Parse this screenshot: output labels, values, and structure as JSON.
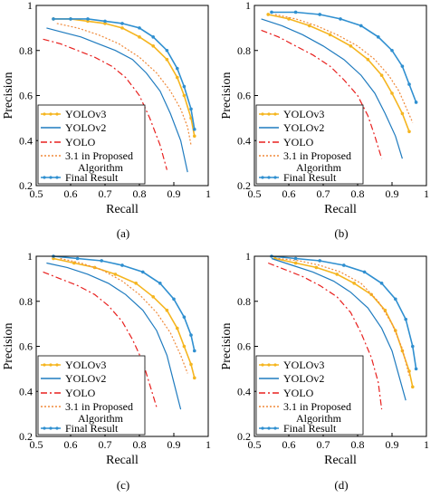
{
  "figure": {
    "subfigure_labels": [
      "(a)",
      "(b)",
      "(c)",
      "(d)"
    ]
  },
  "chart_data": [
    {
      "type": "line",
      "label": "(a)",
      "xlabel": "Recall",
      "ylabel": "Precision",
      "xlim": [
        0.5,
        1
      ],
      "ylim": [
        0.2,
        1
      ],
      "xticks": [
        "0.5",
        "0.6",
        "0.7",
        "0.8",
        "0.9",
        "1"
      ],
      "yticks": [
        "0.2",
        "0.4",
        "0.6",
        "0.8",
        "1"
      ],
      "legend": [
        "YOLOv3",
        "YOLOv2",
        "YOLO",
        "3.1 in Proposed Algorithm",
        "Final Result"
      ],
      "series": [
        {
          "name": "YOLOv3",
          "color": "#f5b51f",
          "style": "solid-marker",
          "x": [
            0.55,
            0.6,
            0.65,
            0.7,
            0.75,
            0.8,
            0.84,
            0.88,
            0.91,
            0.93,
            0.95,
            0.96
          ],
          "y": [
            0.94,
            0.94,
            0.93,
            0.92,
            0.9,
            0.86,
            0.82,
            0.76,
            0.68,
            0.6,
            0.5,
            0.42
          ]
        },
        {
          "name": "YOLOv2",
          "color": "#1f7bbf",
          "style": "solid",
          "x": [
            0.53,
            0.58,
            0.63,
            0.68,
            0.73,
            0.78,
            0.82,
            0.86,
            0.89,
            0.92,
            0.94
          ],
          "y": [
            0.9,
            0.88,
            0.86,
            0.83,
            0.8,
            0.76,
            0.7,
            0.62,
            0.52,
            0.4,
            0.26
          ]
        },
        {
          "name": "YOLO",
          "color": "#e8201e",
          "style": "dashdot",
          "x": [
            0.52,
            0.57,
            0.62,
            0.67,
            0.72,
            0.76,
            0.8,
            0.83,
            0.86,
            0.88
          ],
          "y": [
            0.85,
            0.83,
            0.8,
            0.77,
            0.73,
            0.68,
            0.6,
            0.5,
            0.38,
            0.27
          ]
        },
        {
          "name": "3.1 in Proposed Algorithm",
          "color": "#f08a3a",
          "style": "dotted",
          "x": [
            0.56,
            0.62,
            0.68,
            0.74,
            0.8,
            0.85,
            0.89,
            0.92,
            0.94,
            0.95
          ],
          "y": [
            0.92,
            0.9,
            0.87,
            0.83,
            0.77,
            0.7,
            0.62,
            0.54,
            0.46,
            0.38
          ]
        },
        {
          "name": "Final Result",
          "color": "#2f8fd0",
          "style": "solid-marker",
          "x": [
            0.55,
            0.6,
            0.65,
            0.7,
            0.75,
            0.8,
            0.84,
            0.88,
            0.91,
            0.93,
            0.95,
            0.96
          ],
          "y": [
            0.94,
            0.94,
            0.94,
            0.93,
            0.92,
            0.9,
            0.86,
            0.8,
            0.72,
            0.64,
            0.54,
            0.45
          ]
        }
      ]
    },
    {
      "type": "line",
      "label": "(b)",
      "xlabel": "Recall",
      "ylabel": "Precision",
      "xlim": [
        0.5,
        1
      ],
      "ylim": [
        0.2,
        1
      ],
      "xticks": [
        "0.5",
        "0.6",
        "0.7",
        "0.8",
        "0.9",
        "1"
      ],
      "yticks": [
        "0.2",
        "0.4",
        "0.6",
        "0.8",
        "1"
      ],
      "legend": [
        "YOLOv3",
        "YOLOv2",
        "YOLO",
        "3.1 in Proposed Algorithm",
        "Final Result"
      ],
      "series": [
        {
          "name": "YOLOv3",
          "color": "#f5b51f",
          "style": "solid-marker",
          "x": [
            0.54,
            0.6,
            0.66,
            0.72,
            0.78,
            0.83,
            0.87,
            0.9,
            0.93,
            0.95
          ],
          "y": [
            0.96,
            0.94,
            0.91,
            0.87,
            0.82,
            0.76,
            0.69,
            0.61,
            0.52,
            0.44
          ]
        },
        {
          "name": "YOLOv2",
          "color": "#1f7bbf",
          "style": "solid",
          "x": [
            0.52,
            0.58,
            0.64,
            0.7,
            0.76,
            0.81,
            0.85,
            0.88,
            0.91,
            0.93
          ],
          "y": [
            0.94,
            0.91,
            0.87,
            0.82,
            0.76,
            0.69,
            0.61,
            0.52,
            0.42,
            0.32
          ]
        },
        {
          "name": "YOLO",
          "color": "#e8201e",
          "style": "dashdot",
          "x": [
            0.52,
            0.57,
            0.62,
            0.67,
            0.72,
            0.76,
            0.8,
            0.83,
            0.85,
            0.87
          ],
          "y": [
            0.89,
            0.86,
            0.82,
            0.78,
            0.73,
            0.67,
            0.6,
            0.51,
            0.42,
            0.32
          ]
        },
        {
          "name": "3.1 in Proposed Algorithm",
          "color": "#f08a3a",
          "style": "dotted",
          "x": [
            0.56,
            0.62,
            0.68,
            0.74,
            0.8,
            0.85,
            0.89,
            0.92,
            0.94,
            0.96
          ],
          "y": [
            0.96,
            0.94,
            0.91,
            0.87,
            0.82,
            0.76,
            0.69,
            0.62,
            0.55,
            0.48
          ]
        },
        {
          "name": "Final Result",
          "color": "#2f8fd0",
          "style": "solid-marker",
          "x": [
            0.55,
            0.62,
            0.69,
            0.75,
            0.81,
            0.86,
            0.9,
            0.93,
            0.95,
            0.97
          ],
          "y": [
            0.97,
            0.97,
            0.96,
            0.94,
            0.91,
            0.86,
            0.8,
            0.73,
            0.65,
            0.57
          ]
        }
      ]
    },
    {
      "type": "line",
      "label": "(c)",
      "xlabel": "Recall",
      "ylabel": "Precision",
      "xlim": [
        0.5,
        1
      ],
      "ylim": [
        0.2,
        1
      ],
      "xticks": [
        "0.5",
        "0.6",
        "0.7",
        "0.8",
        "0.9",
        "1"
      ],
      "yticks": [
        "0.2",
        "0.4",
        "0.6",
        "0.8",
        "1"
      ],
      "legend": [
        "YOLOv3",
        "YOLOv2",
        "YOLO",
        "3.1 in Proposed Algorithm",
        "Final Result"
      ],
      "series": [
        {
          "name": "YOLOv3",
          "color": "#f5b51f",
          "style": "solid-marker",
          "x": [
            0.55,
            0.61,
            0.67,
            0.73,
            0.79,
            0.84,
            0.88,
            0.91,
            0.93,
            0.95,
            0.96
          ],
          "y": [
            0.99,
            0.97,
            0.95,
            0.92,
            0.88,
            0.82,
            0.76,
            0.68,
            0.6,
            0.52,
            0.46
          ]
        },
        {
          "name": "YOLOv2",
          "color": "#1f7bbf",
          "style": "solid",
          "x": [
            0.53,
            0.59,
            0.65,
            0.71,
            0.76,
            0.81,
            0.85,
            0.88,
            0.9,
            0.92
          ],
          "y": [
            0.97,
            0.95,
            0.92,
            0.88,
            0.83,
            0.76,
            0.67,
            0.56,
            0.44,
            0.32
          ]
        },
        {
          "name": "YOLO",
          "color": "#e8201e",
          "style": "dashdot",
          "x": [
            0.52,
            0.57,
            0.62,
            0.67,
            0.71,
            0.75,
            0.78,
            0.81,
            0.83,
            0.85
          ],
          "y": [
            0.93,
            0.9,
            0.87,
            0.83,
            0.78,
            0.71,
            0.63,
            0.53,
            0.43,
            0.33
          ]
        },
        {
          "name": "3.1 in Proposed Algorithm",
          "color": "#f08a3a",
          "style": "dotted",
          "x": [
            0.57,
            0.63,
            0.69,
            0.75,
            0.8,
            0.85,
            0.89,
            0.92,
            0.94
          ],
          "y": [
            0.99,
            0.97,
            0.94,
            0.89,
            0.83,
            0.75,
            0.66,
            0.56,
            0.48
          ]
        },
        {
          "name": "Final Result",
          "color": "#2f8fd0",
          "style": "solid-marker",
          "x": [
            0.55,
            0.62,
            0.69,
            0.75,
            0.81,
            0.86,
            0.9,
            0.93,
            0.95,
            0.96
          ],
          "y": [
            1.0,
            0.99,
            0.98,
            0.96,
            0.93,
            0.88,
            0.81,
            0.73,
            0.65,
            0.58
          ]
        }
      ]
    },
    {
      "type": "line",
      "label": "(d)",
      "xlabel": "Recall",
      "ylabel": "Precision",
      "xlim": [
        0.5,
        1
      ],
      "ylim": [
        0.2,
        1
      ],
      "xticks": [
        "0.5",
        "0.6",
        "0.7",
        "0.8",
        "0.9",
        "1"
      ],
      "yticks": [
        "0.2",
        "0.4",
        "0.6",
        "0.8",
        "1"
      ],
      "legend": [
        "YOLOv3",
        "YOLOv2",
        "YOLO",
        "3.1 in Proposed Algorithm",
        "Final Result"
      ],
      "series": [
        {
          "name": "YOLOv3",
          "color": "#f5b51f",
          "style": "solid-marker",
          "x": [
            0.56,
            0.62,
            0.68,
            0.74,
            0.79,
            0.84,
            0.88,
            0.91,
            0.93,
            0.95,
            0.96
          ],
          "y": [
            0.99,
            0.97,
            0.95,
            0.92,
            0.88,
            0.83,
            0.76,
            0.67,
            0.58,
            0.49,
            0.42
          ]
        },
        {
          "name": "YOLOv2",
          "color": "#1f7bbf",
          "style": "solid",
          "x": [
            0.55,
            0.61,
            0.67,
            0.73,
            0.78,
            0.83,
            0.87,
            0.9,
            0.92,
            0.94
          ],
          "y": [
            0.99,
            0.96,
            0.93,
            0.89,
            0.84,
            0.77,
            0.68,
            0.58,
            0.47,
            0.36
          ]
        },
        {
          "name": "YOLO",
          "color": "#e8201e",
          "style": "dashdot",
          "x": [
            0.54,
            0.59,
            0.64,
            0.69,
            0.74,
            0.78,
            0.81,
            0.84,
            0.86,
            0.87
          ],
          "y": [
            0.97,
            0.94,
            0.91,
            0.87,
            0.82,
            0.75,
            0.66,
            0.55,
            0.44,
            0.32
          ]
        },
        {
          "name": "3.1 in Proposed Algorithm",
          "color": "#f08a3a",
          "style": "dotted",
          "x": [
            0.57,
            0.63,
            0.69,
            0.75,
            0.81,
            0.86,
            0.9,
            0.93,
            0.95
          ],
          "y": [
            0.99,
            0.98,
            0.96,
            0.93,
            0.88,
            0.8,
            0.7,
            0.59,
            0.47
          ]
        },
        {
          "name": "Final Result",
          "color": "#2f8fd0",
          "style": "solid-marker",
          "x": [
            0.55,
            0.62,
            0.69,
            0.76,
            0.82,
            0.87,
            0.91,
            0.94,
            0.96,
            0.97
          ],
          "y": [
            1.0,
            0.99,
            0.98,
            0.96,
            0.93,
            0.88,
            0.81,
            0.72,
            0.6,
            0.5
          ]
        }
      ]
    }
  ]
}
